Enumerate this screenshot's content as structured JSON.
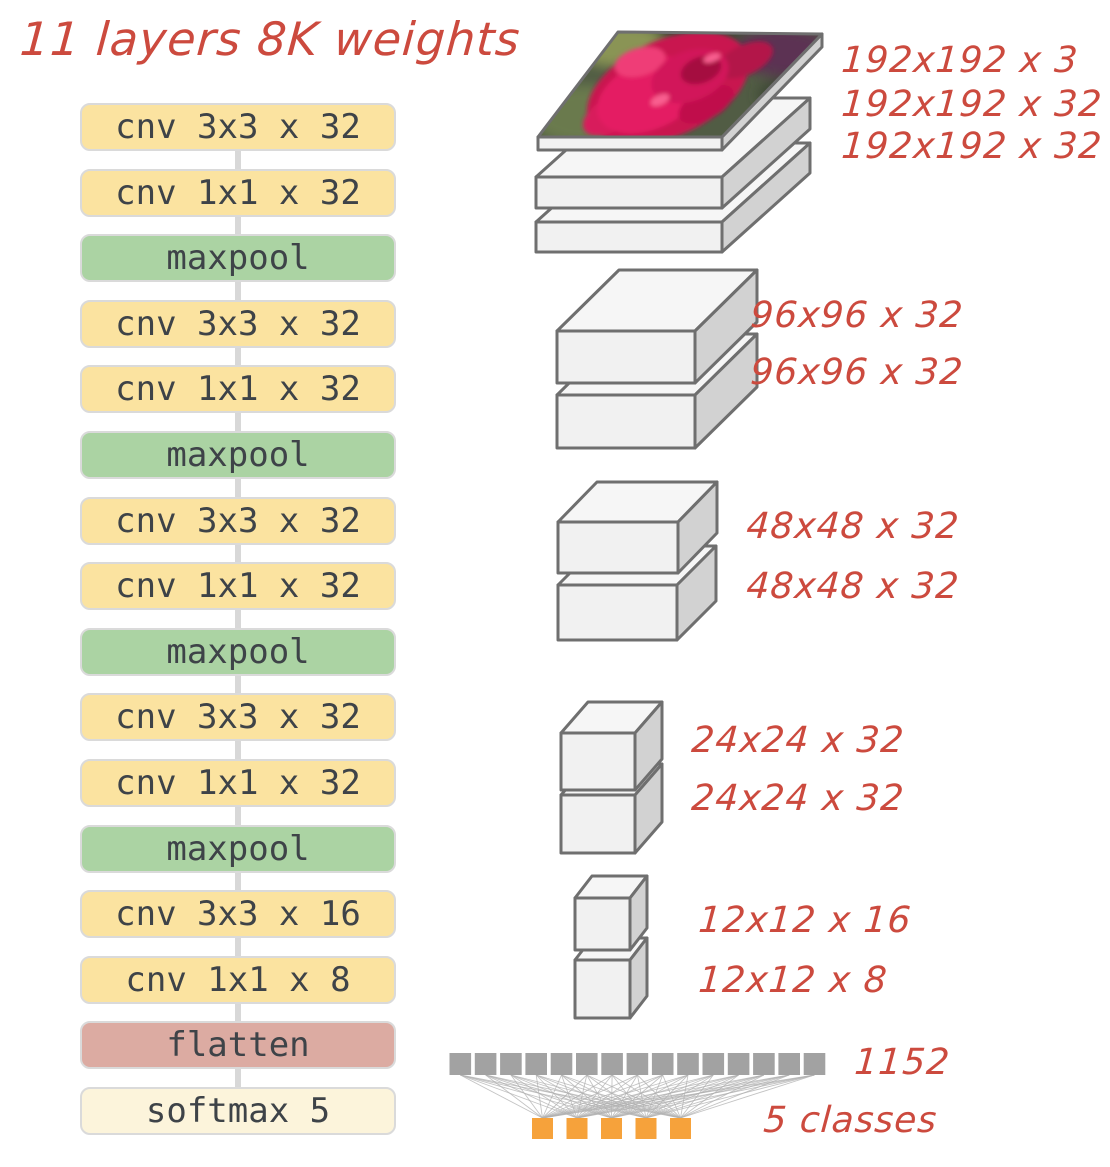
{
  "title": "11 layers 8K weights",
  "pipeline": {
    "blocks": [
      {
        "label": "cnv 3x3 x 32",
        "type": "conv"
      },
      {
        "label": "cnv 1x1 x 32",
        "type": "conv"
      },
      {
        "label": "maxpool",
        "type": "pool"
      },
      {
        "label": "cnv 3x3 x 32",
        "type": "conv"
      },
      {
        "label": "cnv 1x1 x 32",
        "type": "conv"
      },
      {
        "label": "maxpool",
        "type": "pool"
      },
      {
        "label": "cnv 3x3 x 32",
        "type": "conv"
      },
      {
        "label": "cnv 1x1 x 32",
        "type": "conv"
      },
      {
        "label": "maxpool",
        "type": "pool"
      },
      {
        "label": "cnv 3x3 x 32",
        "type": "conv"
      },
      {
        "label": "cnv 1x1 x 32",
        "type": "conv"
      },
      {
        "label": "maxpool",
        "type": "pool"
      },
      {
        "label": "cnv 3x3 x 16",
        "type": "conv"
      },
      {
        "label": "cnv 1x1 x 8",
        "type": "conv"
      },
      {
        "label": "flatten",
        "type": "flatten"
      },
      {
        "label": "softmax 5",
        "type": "softmax"
      }
    ]
  },
  "annotations": [
    "192x192 x 3",
    "192x192 x 32",
    "192x192 x 32",
    "96x96 x 32",
    "96x96 x 32",
    "48x48 x 32",
    "48x48 x 32",
    "24x24 x 32",
    "24x24 x 32",
    "12x12 x 16",
    "12x12 x 8",
    "1152",
    "5 classes"
  ],
  "flatten_row": {
    "count": 15,
    "label": "1152"
  },
  "classes_row": {
    "count": 5,
    "label": "5 classes"
  },
  "colors": {
    "conv_bg": "#FBE3A0",
    "pool_bg": "#ABD3A3",
    "flatten_bg": "#DCABA2",
    "softmax_bg": "#FCF4DB",
    "block_border": "#DADADA",
    "block_text": "#3E4348",
    "connector": "#D8D8D8",
    "ink_red": "#CC4A3E",
    "box_stroke": "#6F6F6F",
    "box_front": "#F1F1F1",
    "box_top": "#F6F6F6",
    "box_side": "#D2D2D2",
    "square_gray": "#A2A2A2",
    "class_orange": "#F6A23B",
    "net_line": "#B0B0B0"
  }
}
